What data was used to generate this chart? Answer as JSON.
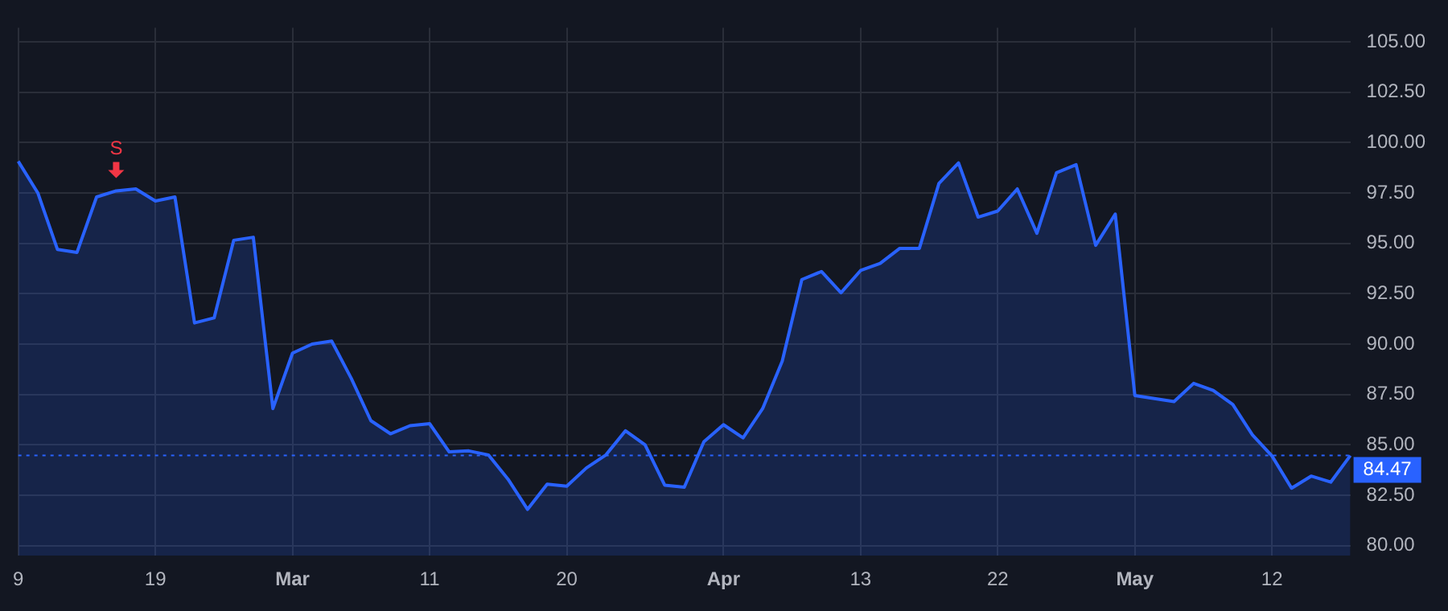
{
  "chart_data": {
    "type": "area",
    "categories": [
      "9",
      null,
      null,
      null,
      null,
      null,
      null,
      "19",
      null,
      null,
      null,
      null,
      null,
      null,
      "Mar",
      null,
      null,
      null,
      null,
      null,
      null,
      "11",
      null,
      null,
      null,
      null,
      null,
      null,
      "20",
      null,
      null,
      null,
      null,
      null,
      null,
      null,
      "Apr",
      null,
      null,
      null,
      null,
      null,
      null,
      "13",
      null,
      null,
      null,
      null,
      null,
      null,
      "22",
      null,
      null,
      null,
      null,
      null,
      null,
      "May",
      null,
      null,
      null,
      null,
      null,
      null,
      "12",
      null,
      null,
      null,
      null
    ],
    "series": [
      {
        "color": "#2962ff",
        "values": [
          99.07,
          97.5,
          94.7,
          94.55,
          97.3,
          97.6,
          97.7,
          97.1,
          97.3,
          91.05,
          91.3,
          95.15,
          95.3,
          86.8,
          89.55,
          90.0,
          90.15,
          88.3,
          86.2,
          85.55,
          85.95,
          86.05,
          84.65,
          84.7,
          84.5,
          83.3,
          81.8,
          83.05,
          82.95,
          83.85,
          84.5,
          85.7,
          85.0,
          83.0,
          82.9,
          85.15,
          86.0,
          85.35,
          86.8,
          89.15,
          93.2,
          93.6,
          92.55,
          93.65,
          94.0,
          94.75,
          94.75,
          97.97,
          98.99,
          96.3,
          96.6,
          97.7,
          95.5,
          98.5,
          98.9,
          94.9,
          96.45,
          87.45,
          87.3,
          87.15,
          88.05,
          87.7,
          87.0,
          85.5,
          84.45,
          82.85,
          83.45,
          83.15,
          84.47
        ]
      }
    ],
    "ylim": [
      79.5,
      105.7
    ],
    "yticks": [
      {
        "value": 80,
        "label": "80.00"
      },
      {
        "value": 82.5,
        "label": "82.50"
      },
      {
        "value": 85,
        "label": "85.00"
      },
      {
        "value": 87.5,
        "label": "87.50"
      },
      {
        "value": 90,
        "label": "90.00"
      },
      {
        "value": 92.5,
        "label": "92.50"
      },
      {
        "value": 95,
        "label": "95.00"
      },
      {
        "value": 97.5,
        "label": "97.50"
      },
      {
        "value": 100,
        "label": "100.00"
      },
      {
        "value": 102.5,
        "label": "102.50"
      },
      {
        "value": 105,
        "label": "105.00"
      }
    ],
    "ref_lines": [
      {
        "axis": "y",
        "value": 84.47,
        "label": "84.47",
        "color": "#2962ff",
        "line_style": "dotted"
      }
    ],
    "annotations": [
      {
        "text": "S",
        "y": 97.6
      }
    ],
    "grid": true,
    "legend": false
  }
}
